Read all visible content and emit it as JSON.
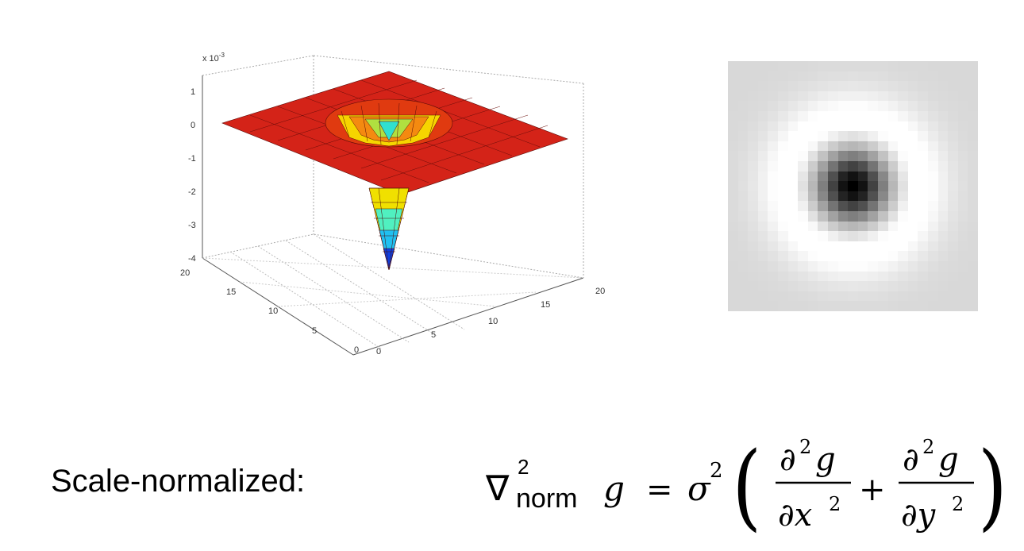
{
  "surface_plot": {
    "z_multiplier_label": "x 10",
    "z_multiplier_exp": "-3",
    "z_ticks": [
      "1",
      "0",
      "-1",
      "-2",
      "-3",
      "-4"
    ],
    "x_ticks": [
      "0",
      "5",
      "10",
      "15",
      "20"
    ],
    "y_ticks": [
      "0",
      "5",
      "10",
      "15",
      "20"
    ],
    "colormap": "jet",
    "surface_color_top": "#d02018",
    "z_range": [
      -4,
      1
    ]
  },
  "intensity_image": {
    "grid_size": 25,
    "background": "#d8d8d8",
    "center_color": "#000000"
  },
  "caption": "Scale-normalized:",
  "formula": {
    "nabla": "∇",
    "nabla_sup": "2",
    "nabla_sub": "norm",
    "g": "g",
    "equals": "=",
    "sigma": "σ",
    "sigma_sup": "2",
    "num1": "∂",
    "num1_sup": "2",
    "num1_g": "g",
    "den1": "∂x",
    "den1_sup": "2",
    "plus": "+",
    "num2": "∂",
    "num2_sup": "2",
    "num2_g": "g",
    "den2": "∂y",
    "den2_sup": "2"
  }
}
